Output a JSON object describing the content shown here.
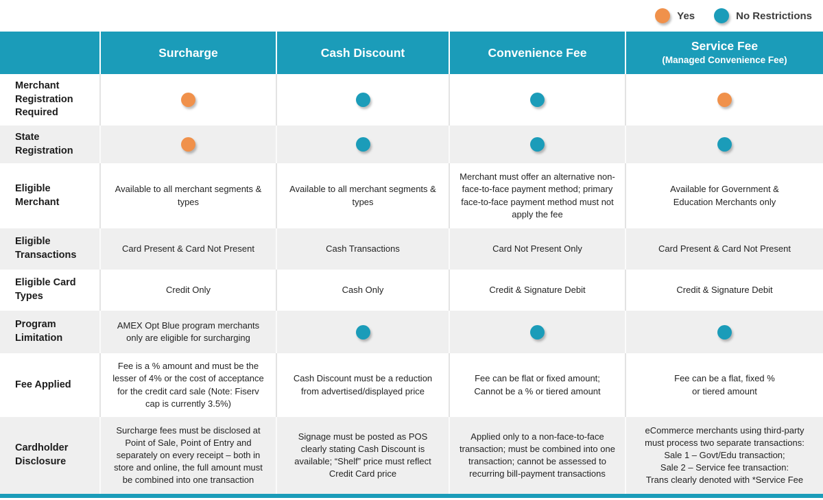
{
  "colors": {
    "teal": "#1B9CB9",
    "orange": "#F0914B",
    "row_alt": "#EFEFEF"
  },
  "legend": {
    "items": [
      {
        "label": "Yes",
        "color": "#F0914B"
      },
      {
        "label": "No Restrictions",
        "color": "#1B9CB9"
      }
    ]
  },
  "chart_data": {
    "type": "table",
    "legend": [
      {
        "label": "Yes",
        "color": "#F0914B"
      },
      {
        "label": "No Restrictions",
        "color": "#1B9CB9"
      }
    ],
    "columns": [
      {
        "title": "",
        "subtitle": ""
      },
      {
        "title": "Surcharge",
        "subtitle": ""
      },
      {
        "title": "Cash Discount",
        "subtitle": ""
      },
      {
        "title": "Convenience Fee",
        "subtitle": ""
      },
      {
        "title": "Service Fee",
        "subtitle": "(Managed Convenience Fee)"
      }
    ],
    "rows": [
      {
        "label": "Merchant Registration Required",
        "cells": [
          "Yes",
          "No Restrictions",
          "No Restrictions",
          "Yes"
        ]
      },
      {
        "label": "State Registration",
        "cells": [
          "Yes",
          "No Restrictions",
          "No Restrictions",
          "No Restrictions"
        ]
      },
      {
        "label": "Eligible Merchant",
        "cells": [
          "Available to all merchant segments & types",
          "Available to all merchant segments & types",
          "Merchant must offer an alternative non-face-to-face payment method; primary face-to-face payment method must not apply the fee",
          "Available for Government &\nEducation Merchants only"
        ]
      },
      {
        "label": "Eligible Transactions",
        "cells": [
          "Card Present & Card Not Present",
          "Cash Transactions",
          "Card Not Present Only",
          "Card Present & Card Not Present"
        ]
      },
      {
        "label": "Eligible Card Types",
        "cells": [
          "Credit Only",
          "Cash Only",
          "Credit & Signature Debit",
          "Credit & Signature Debit"
        ]
      },
      {
        "label": "Program Limitation",
        "cells": [
          "AMEX Opt Blue program merchants only are eligible for surcharging",
          "No Restrictions",
          "No Restrictions",
          "No Restrictions"
        ]
      },
      {
        "label": "Fee Applied",
        "cells": [
          "Fee is a % amount and must be the lesser of 4% or the cost of acceptance for the credit card sale (Note: Fiserv cap is currently 3.5%)",
          "Cash Discount must be a reduction from advertised/displayed price",
          "Fee can be flat or fixed amount;\nCannot be a % or tiered amount",
          "Fee can be a flat, fixed %\nor tiered amount"
        ]
      },
      {
        "label": "Cardholder Disclosure",
        "cells": [
          "Surcharge fees must be disclosed at Point of Sale, Point of Entry and separately on every receipt – both in store and online, the full amount must be combined into one transaction",
          "Signage must be posted as POS clearly stating Cash Discount is available; “Shelf” price must reflect Credit Card price",
          "Applied only to a non-face-to-face transaction; must be combined into one transaction; cannot be assessed to recurring bill-payment transactions",
          "eCommerce merchants using third-party\nmust process two separate transactions:\nSale 1 – Govt/Edu transaction;\nSale 2 – Service fee transaction:\nTrans clearly denoted with *Service Fee"
        ]
      }
    ]
  }
}
